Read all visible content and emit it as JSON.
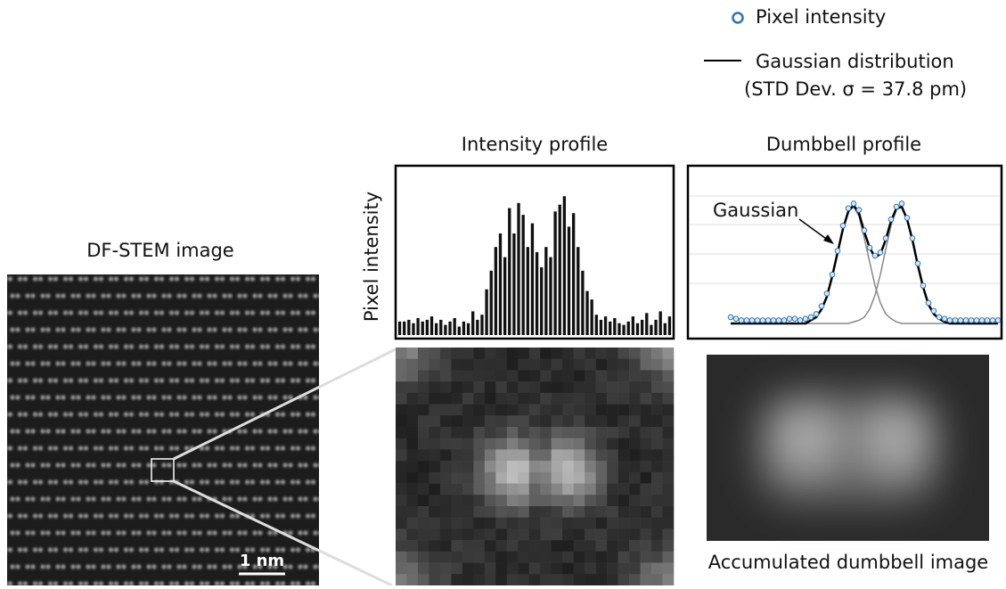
{
  "legend": {
    "note": "(STD Dev. σ = 37.8 pm)"
  },
  "panels": {
    "stem_title": "DF-STEM image",
    "scale_bar": "1 nm",
    "intensity_title": "Intensity profile",
    "dumbbell_title": "Dumbbell profile",
    "accumulated_caption": "Accumulated dumbbell image"
  },
  "intensity_profile": {
    "type": "bar",
    "y_label": "Pixel intensity",
    "ylim": [
      0,
      100
    ],
    "values": [
      8,
      8,
      9,
      7,
      10,
      8,
      9,
      11,
      7,
      9,
      6,
      8,
      10,
      5,
      8,
      7,
      14,
      9,
      12,
      27,
      38,
      52,
      60,
      46,
      75,
      60,
      78,
      71,
      52,
      66,
      49,
      40,
      52,
      46,
      73,
      77,
      82,
      64,
      72,
      52,
      38,
      26,
      21,
      12,
      9,
      11,
      8,
      10,
      7,
      6,
      8,
      11,
      7,
      9,
      13,
      6,
      9,
      14,
      7,
      11
    ]
  },
  "dumbbell_profile": {
    "type": "scatter",
    "annotation": "Gaussian",
    "ylim": [
      0,
      100
    ],
    "series": [
      {
        "name": "Pixel intensity",
        "color": "#2e75b6",
        "values": [
          4,
          3,
          2,
          2,
          2,
          2,
          2,
          2,
          2,
          2,
          2,
          3,
          3,
          2,
          3,
          4,
          6,
          11,
          19,
          31,
          46,
          62,
          73,
          76,
          72,
          59,
          48,
          43,
          45,
          54,
          66,
          74,
          76,
          67,
          54,
          38,
          24,
          13,
          8,
          4,
          3,
          2,
          2,
          2,
          2,
          2,
          2,
          2,
          2,
          2,
          2
        ]
      },
      {
        "name": "Gaussian distribution",
        "color": "#000000",
        "values": [
          0,
          0,
          0,
          0,
          0,
          0,
          0,
          0,
          0,
          0,
          0,
          0,
          0,
          0,
          0,
          2,
          4,
          9,
          17,
          30,
          45,
          60,
          71,
          75,
          70,
          58,
          48,
          42,
          44,
          53,
          65,
          73,
          74,
          66,
          53,
          37,
          23,
          12,
          6,
          3,
          1,
          0,
          0,
          0,
          0,
          0,
          0,
          0,
          0,
          0,
          0
        ]
      }
    ],
    "components": [
      [
        0,
        0,
        0,
        0,
        0,
        0,
        0,
        0,
        0,
        0,
        0,
        0,
        0,
        0,
        0,
        2,
        4,
        9,
        17,
        30,
        45,
        60,
        71,
        74,
        68,
        54,
        39,
        24,
        13,
        6,
        3,
        1,
        0,
        0,
        0,
        0,
        0,
        0,
        0,
        0,
        0,
        0,
        0,
        0,
        0,
        0,
        0,
        0,
        0,
        0,
        0
      ],
      [
        0,
        0,
        0,
        0,
        0,
        0,
        0,
        0,
        0,
        0,
        0,
        0,
        0,
        0,
        0,
        0,
        0,
        0,
        0,
        0,
        0,
        0,
        0,
        1,
        2,
        4,
        9,
        18,
        31,
        47,
        62,
        72,
        74,
        66,
        53,
        37,
        23,
        12,
        6,
        3,
        1,
        0,
        0,
        0,
        0,
        0,
        0,
        0,
        0,
        0,
        0
      ]
    ]
  }
}
